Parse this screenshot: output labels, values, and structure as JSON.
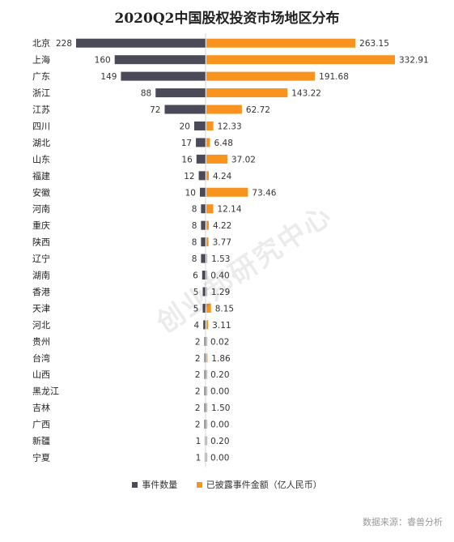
{
  "chart_data": {
    "type": "bar",
    "title": "2020Q2中国股权投资市场地区分布",
    "categories": [
      "北京",
      "上海",
      "广东",
      "浙江",
      "江苏",
      "四川",
      "湖北",
      "山东",
      "福建",
      "安徽",
      "河南",
      "重庆",
      "陕西",
      "辽宁",
      "湖南",
      "香港",
      "天津",
      "河北",
      "贵州",
      "台湾",
      "山西",
      "黑龙江",
      "吉林",
      "广西",
      "新疆",
      "宁夏"
    ],
    "series": [
      {
        "name": "事件数量",
        "color": "#4a4a59",
        "values": [
          228,
          160,
          149,
          88,
          72,
          20,
          17,
          16,
          12,
          10,
          8,
          8,
          8,
          8,
          6,
          5,
          5,
          4,
          2,
          2,
          2,
          2,
          2,
          2,
          1,
          1
        ],
        "labels": [
          "228",
          "160",
          "149",
          "88",
          "72",
          "20",
          "17",
          "16",
          "12",
          "10",
          "8",
          "8",
          "8",
          "8",
          "6",
          "5",
          "5",
          "4",
          "2",
          "2",
          "2",
          "2",
          "2",
          "2",
          "1",
          "1"
        ]
      },
      {
        "name": "已披露事件金额（亿人民币）",
        "color": "#f7931e",
        "values": [
          263.15,
          332.91,
          191.68,
          143.22,
          62.72,
          12.33,
          6.48,
          37.02,
          4.24,
          73.46,
          12.14,
          4.22,
          3.77,
          1.53,
          0.4,
          1.29,
          8.15,
          3.11,
          0.02,
          1.86,
          0.2,
          0.0,
          1.5,
          0.0,
          0.2,
          0.0
        ],
        "labels": [
          "263.15",
          "332.91",
          "191.68",
          "143.22",
          "62.72",
          "12.33",
          "6.48",
          "37.02",
          "4.24",
          "73.46",
          "12.14",
          "4.22",
          "3.77",
          "1.53",
          "0.40",
          "1.29",
          "8.15",
          "3.11",
          "0.02",
          "1.86",
          "0.20",
          "0.00",
          "1.50",
          "0.00",
          "0.20",
          "0.00"
        ]
      }
    ],
    "grid": false,
    "legend": "bottom"
  },
  "watermark": "创业邦研究中心",
  "source": "数据来源：睿兽分析"
}
